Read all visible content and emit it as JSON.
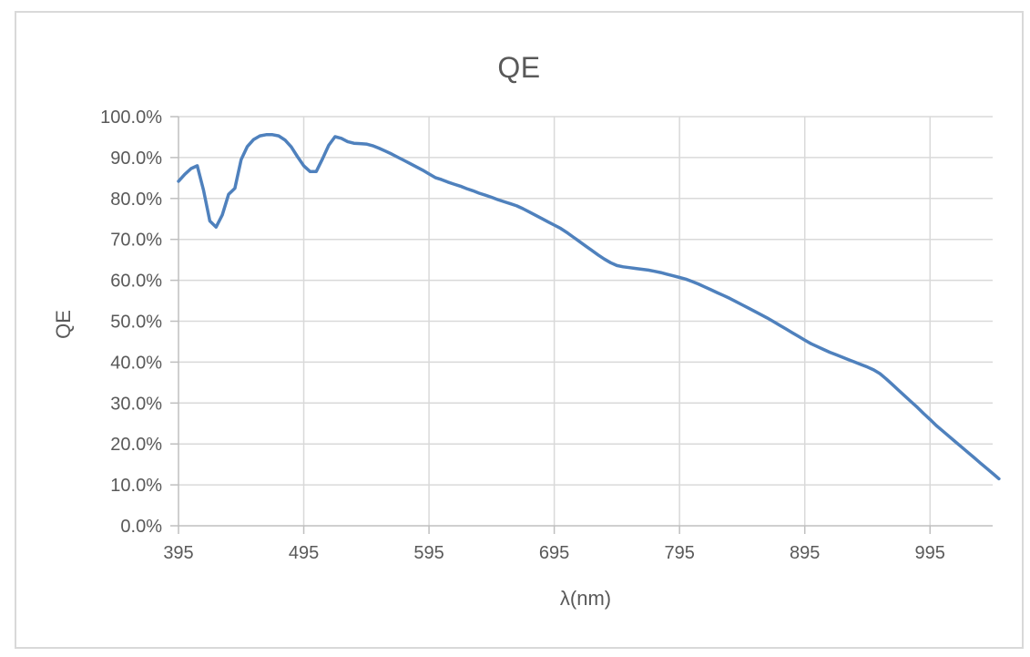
{
  "colors": {
    "line": "#4F81BD",
    "gridline": "#D9D9D9",
    "axis": "#BFBFBF",
    "text": "#595959",
    "background": "#FFFFFF",
    "frame_border": "#D9D9D9"
  },
  "chart_data": {
    "type": "line",
    "title": "QE",
    "xlabel": "λ(nm)",
    "ylabel": "QE",
    "grid": true,
    "legend": false,
    "xlim": [
      395,
      1045
    ],
    "ylim_pct": [
      0,
      100
    ],
    "x_start_nm": 395,
    "x_step_nm": 5,
    "x_ticks": [
      395,
      495,
      595,
      695,
      795,
      895,
      995
    ],
    "y_ticks_pct": [
      0,
      10,
      20,
      30,
      40,
      50,
      60,
      70,
      80,
      90,
      100
    ],
    "y_tick_labels": [
      "0.0%",
      "10.0%",
      "20.0%",
      "30.0%",
      "40.0%",
      "50.0%",
      "60.0%",
      "70.0%",
      "80.0%",
      "90.0%",
      "100.0%"
    ],
    "series": [
      {
        "name": "QE",
        "color": "#4F81BD",
        "unit": "percent",
        "qe_percent": [
          84.2,
          85.9,
          87.3,
          88.0,
          82.0,
          74.5,
          73.0,
          76.0,
          81.0,
          82.5,
          89.5,
          92.7,
          94.4,
          95.3,
          95.6,
          95.6,
          95.3,
          94.3,
          92.6,
          90.2,
          88.0,
          86.6,
          86.6,
          89.7,
          93.0,
          95.1,
          94.7,
          93.9,
          93.5,
          93.4,
          93.3,
          92.9,
          92.3,
          91.6,
          90.9,
          90.1,
          89.3,
          88.5,
          87.7,
          86.9,
          86.0,
          85.1,
          84.6,
          84.0,
          83.5,
          83.0,
          82.4,
          81.9,
          81.3,
          80.8,
          80.3,
          79.7,
          79.2,
          78.7,
          78.2,
          77.5,
          76.7,
          75.9,
          75.1,
          74.3,
          73.5,
          72.7,
          71.7,
          70.6,
          69.5,
          68.4,
          67.3,
          66.2,
          65.2,
          64.3,
          63.6,
          63.3,
          63.1,
          62.9,
          62.7,
          62.5,
          62.2,
          61.9,
          61.5,
          61.1,
          60.7,
          60.3,
          59.7,
          59.1,
          58.4,
          57.7,
          57.0,
          56.3,
          55.6,
          54.8,
          54.0,
          53.2,
          52.4,
          51.6,
          50.8,
          49.9,
          49.0,
          48.1,
          47.2,
          46.3,
          45.4,
          44.5,
          43.8,
          43.1,
          42.4,
          41.8,
          41.2,
          40.6,
          40.0,
          39.4,
          38.8,
          38.1,
          37.2,
          35.9,
          34.5,
          33.1,
          31.7,
          30.3,
          28.9,
          27.4,
          26.0,
          24.5,
          23.2,
          21.9,
          20.6,
          19.3,
          18.0,
          16.7,
          15.4,
          14.1,
          12.8,
          11.5
        ]
      }
    ]
  }
}
